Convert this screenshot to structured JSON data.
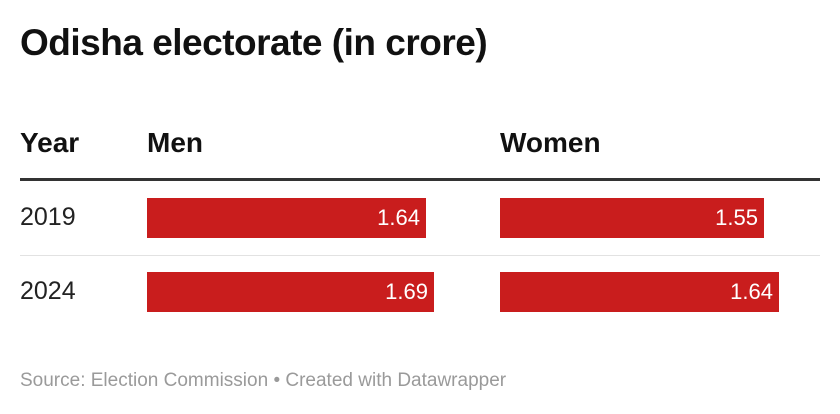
{
  "chart_data": {
    "type": "table",
    "title": "Odisha electorate (in crore)",
    "columns": [
      "Year",
      "Men",
      "Women"
    ],
    "categories": [
      "2019",
      "2024"
    ],
    "series": [
      {
        "name": "Men",
        "values": [
          1.64,
          1.69
        ]
      },
      {
        "name": "Women",
        "values": [
          1.55,
          1.64
        ]
      }
    ],
    "bar_color": "#c91d1d",
    "source": "Source: Election Commission",
    "credit": "Created with Datawrapper",
    "separator": "•"
  }
}
